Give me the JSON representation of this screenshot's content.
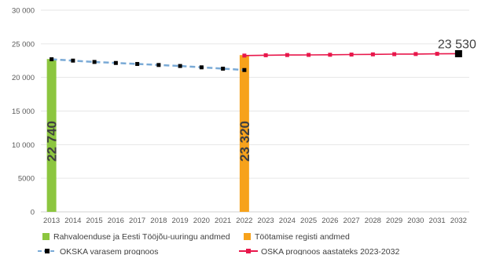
{
  "chart_data": {
    "type": "line",
    "title": "",
    "xlabel": "",
    "ylabel": "",
    "ylim": [
      0,
      30000
    ],
    "yticks": [
      0,
      5000,
      10000,
      15000,
      20000,
      25000,
      30000
    ],
    "ytick_labels": [
      "0",
      "5000",
      "10 000",
      "15 000",
      "20 000",
      "25 000",
      "30 000"
    ],
    "grid": true,
    "legend_position": "bottom",
    "x": [
      "2013",
      "2014",
      "2015",
      "2016",
      "2017",
      "2018",
      "2019",
      "2020",
      "2021",
      "2022",
      "2023",
      "2024",
      "2025",
      "2026",
      "2027",
      "2028",
      "2029",
      "2030",
      "2031",
      "2032"
    ],
    "bars": [
      {
        "name": "Rahvaloenduse ja Eesti Tööjõu-uuringu andmed",
        "x": "2013",
        "value": 22740,
        "label": "22 740",
        "color": "#8cc63f"
      },
      {
        "name": "Töötamise registi andmed",
        "x": "2022",
        "value": 23320,
        "label": "23 320",
        "color": "#f7a21b"
      }
    ],
    "series": [
      {
        "name": "OKSKA varasem prognoos",
        "color": "#7aaad6",
        "marker_color": "#000000",
        "style": "dashed",
        "x": [
          "2013",
          "2014",
          "2015",
          "2016",
          "2017",
          "2018",
          "2019",
          "2020",
          "2021",
          "2022"
        ],
        "values": [
          22700,
          22500,
          22300,
          22150,
          22000,
          21850,
          21700,
          21500,
          21300,
          21100
        ]
      },
      {
        "name": "OSKA prognoos aastateks 2023-2032",
        "color": "#e8174b",
        "marker_color": "#e8174b",
        "style": "solid",
        "x": [
          "2022",
          "2023",
          "2024",
          "2025",
          "2026",
          "2027",
          "2028",
          "2029",
          "2030",
          "2031",
          "2032"
        ],
        "values": [
          23250,
          23300,
          23330,
          23350,
          23370,
          23400,
          23430,
          23460,
          23480,
          23510,
          23530
        ]
      }
    ],
    "end_label": {
      "x": "2032",
      "value": 23530,
      "label": "23 530"
    },
    "legend": [
      {
        "name": "Rahvaloenduse ja Eesti Tööjõu-uuringu andmed",
        "kind": "bar",
        "color": "#8cc63f"
      },
      {
        "name": "Töötamise registi andmed",
        "kind": "bar",
        "color": "#f7a21b"
      },
      {
        "name": "OKSKA varasem prognoos",
        "kind": "line",
        "color": "#7aaad6",
        "marker_color": "#000000"
      },
      {
        "name": "OSKA prognoos aastateks 2023-2032",
        "kind": "line",
        "color": "#e8174b",
        "marker_color": "#e8174b"
      }
    ]
  }
}
